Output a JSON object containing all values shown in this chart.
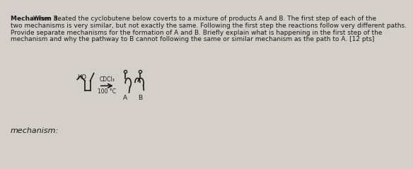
{
  "background_color": "#d4cfc9",
  "title_bold": "Mechanism 3.",
  "title_normal": " When heated the cyclobutene below coverts to a mixture of products A and B. The first step of each of the",
  "line2": "two mechanisms is very similar, but not exactly the same. Following the first step the reactions follow very different paths.",
  "line3": "Provide separate mechanisms for the formation of A and B. Briefly explain what is happening in the first step of the",
  "line4": "mechanism and why the pathway to B cannot following the same or similar mechanism as the path to A. [12 pts]",
  "mechanism_label": "mechanism:",
  "reagent_line1": "CDCl₃",
  "reagent_line2": "100 °C",
  "label_A": "A",
  "label_B": "B",
  "HO_label": "HO",
  "text_color": "#1a1a1a",
  "font_size_body": 6.5,
  "font_size_mechanism": 8.0
}
